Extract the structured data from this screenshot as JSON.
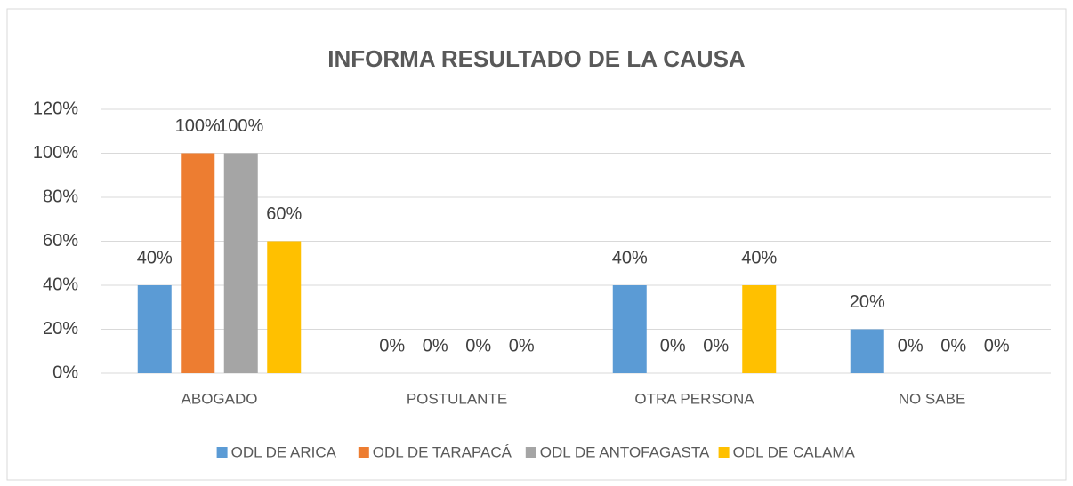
{
  "chart_data": {
    "type": "bar",
    "title": "INFORMA RESULTADO DE LA CAUSA",
    "categories": [
      "ABOGADO",
      "POSTULANTE",
      "OTRA PERSONA",
      "NO SABE"
    ],
    "series": [
      {
        "name": "ODL DE ARICA",
        "color": "#5b9bd5",
        "values": [
          40,
          0,
          40,
          20
        ],
        "value_labels": [
          "40%",
          "0%",
          "40%",
          "20%"
        ]
      },
      {
        "name": "ODL DE TARAPACÁ",
        "color": "#ed7d31",
        "values": [
          100,
          0,
          0,
          0
        ],
        "value_labels": [
          "100%",
          "0%",
          "0%",
          "0%"
        ]
      },
      {
        "name": "ODL DE ANTOFAGASTA",
        "color": "#a5a5a5",
        "values": [
          100,
          0,
          0,
          0
        ],
        "value_labels": [
          "100%",
          "0%",
          "0%",
          "0%"
        ]
      },
      {
        "name": "ODL DE CALAMA",
        "color": "#ffc000",
        "values": [
          60,
          0,
          40,
          0
        ],
        "value_labels": [
          "60%",
          "0%",
          "40%",
          "0%"
        ]
      }
    ],
    "ylim": [
      0,
      120
    ],
    "yticks": [
      {
        "value": 0,
        "label": "0%"
      },
      {
        "value": 20,
        "label": "20%"
      },
      {
        "value": 40,
        "label": "40%"
      },
      {
        "value": 60,
        "label": "60%"
      },
      {
        "value": 80,
        "label": "80%"
      },
      {
        "value": 100,
        "label": "100%"
      },
      {
        "value": 120,
        "label": "120%"
      }
    ],
    "grid": true,
    "legend": "bottom"
  }
}
